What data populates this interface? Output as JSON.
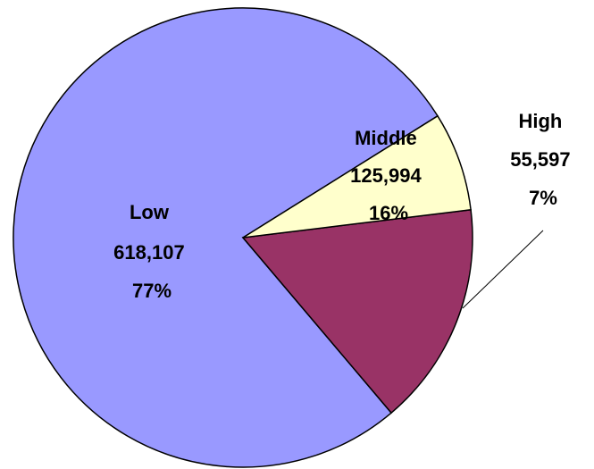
{
  "chart_data": {
    "type": "pie",
    "title": "",
    "start_angle_deg": 32,
    "direction": "counterclockwise",
    "slices": [
      {
        "label": "Low",
        "value": 618107,
        "value_text": "618,107",
        "percent_text": "77%",
        "color": "#9999FF"
      },
      {
        "label": "Middle",
        "value": 125994,
        "value_text": "125,994",
        "percent_text": "16%",
        "color": "#993366"
      },
      {
        "label": "High",
        "value": 55597,
        "value_text": "55,597",
        "percent_text": "7%",
        "color": "#FFFFCC"
      }
    ]
  }
}
